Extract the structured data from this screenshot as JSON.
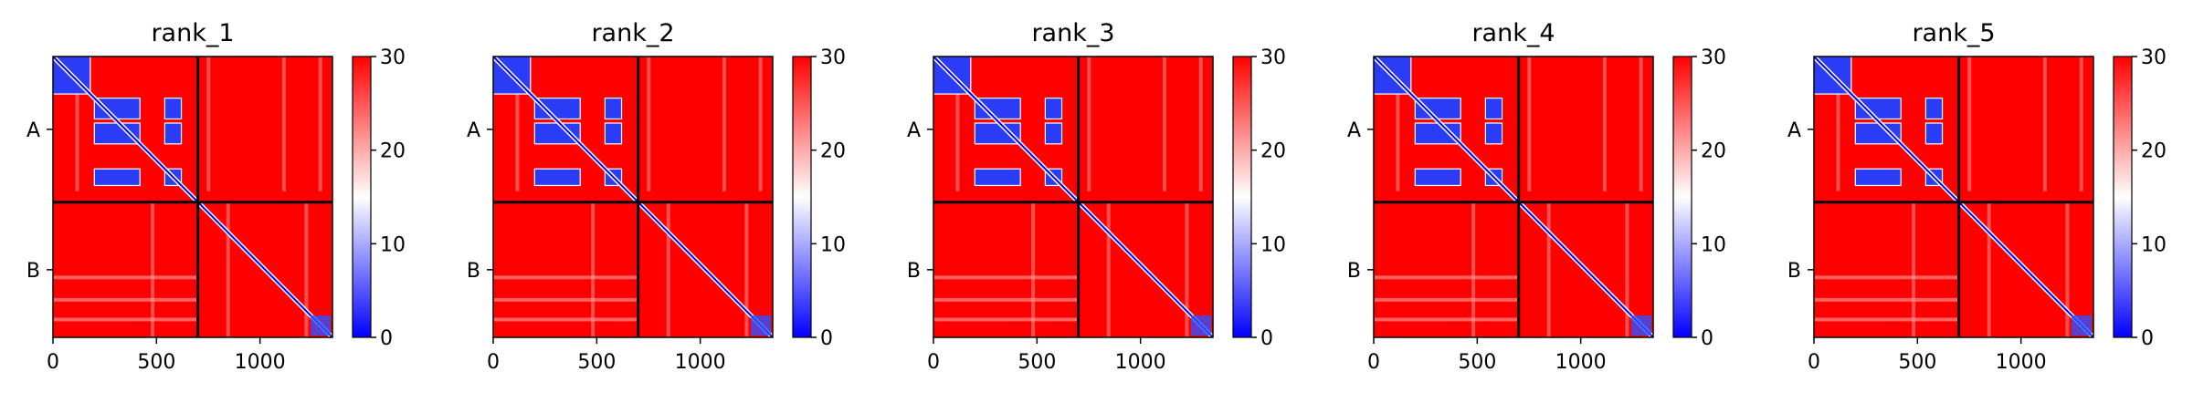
{
  "colors": {
    "low": "#0000ff",
    "mid": "#ffffff",
    "high": "#ff0000",
    "divider": "#000000"
  },
  "chart_data": {
    "type": "heatmap",
    "colorbar": {
      "vmin": 0,
      "vmax": 30,
      "ticks": [
        0,
        10,
        20,
        30
      ]
    },
    "chain_boundary": 700,
    "extent": [
      0,
      1350
    ],
    "xticks": [
      0,
      500,
      1000
    ],
    "ylabels": [
      "A",
      "B"
    ],
    "panels": [
      {
        "title": "rank_1"
      },
      {
        "title": "rank_2"
      },
      {
        "title": "rank_3"
      },
      {
        "title": "rank_4"
      },
      {
        "title": "rank_5"
      }
    ]
  }
}
